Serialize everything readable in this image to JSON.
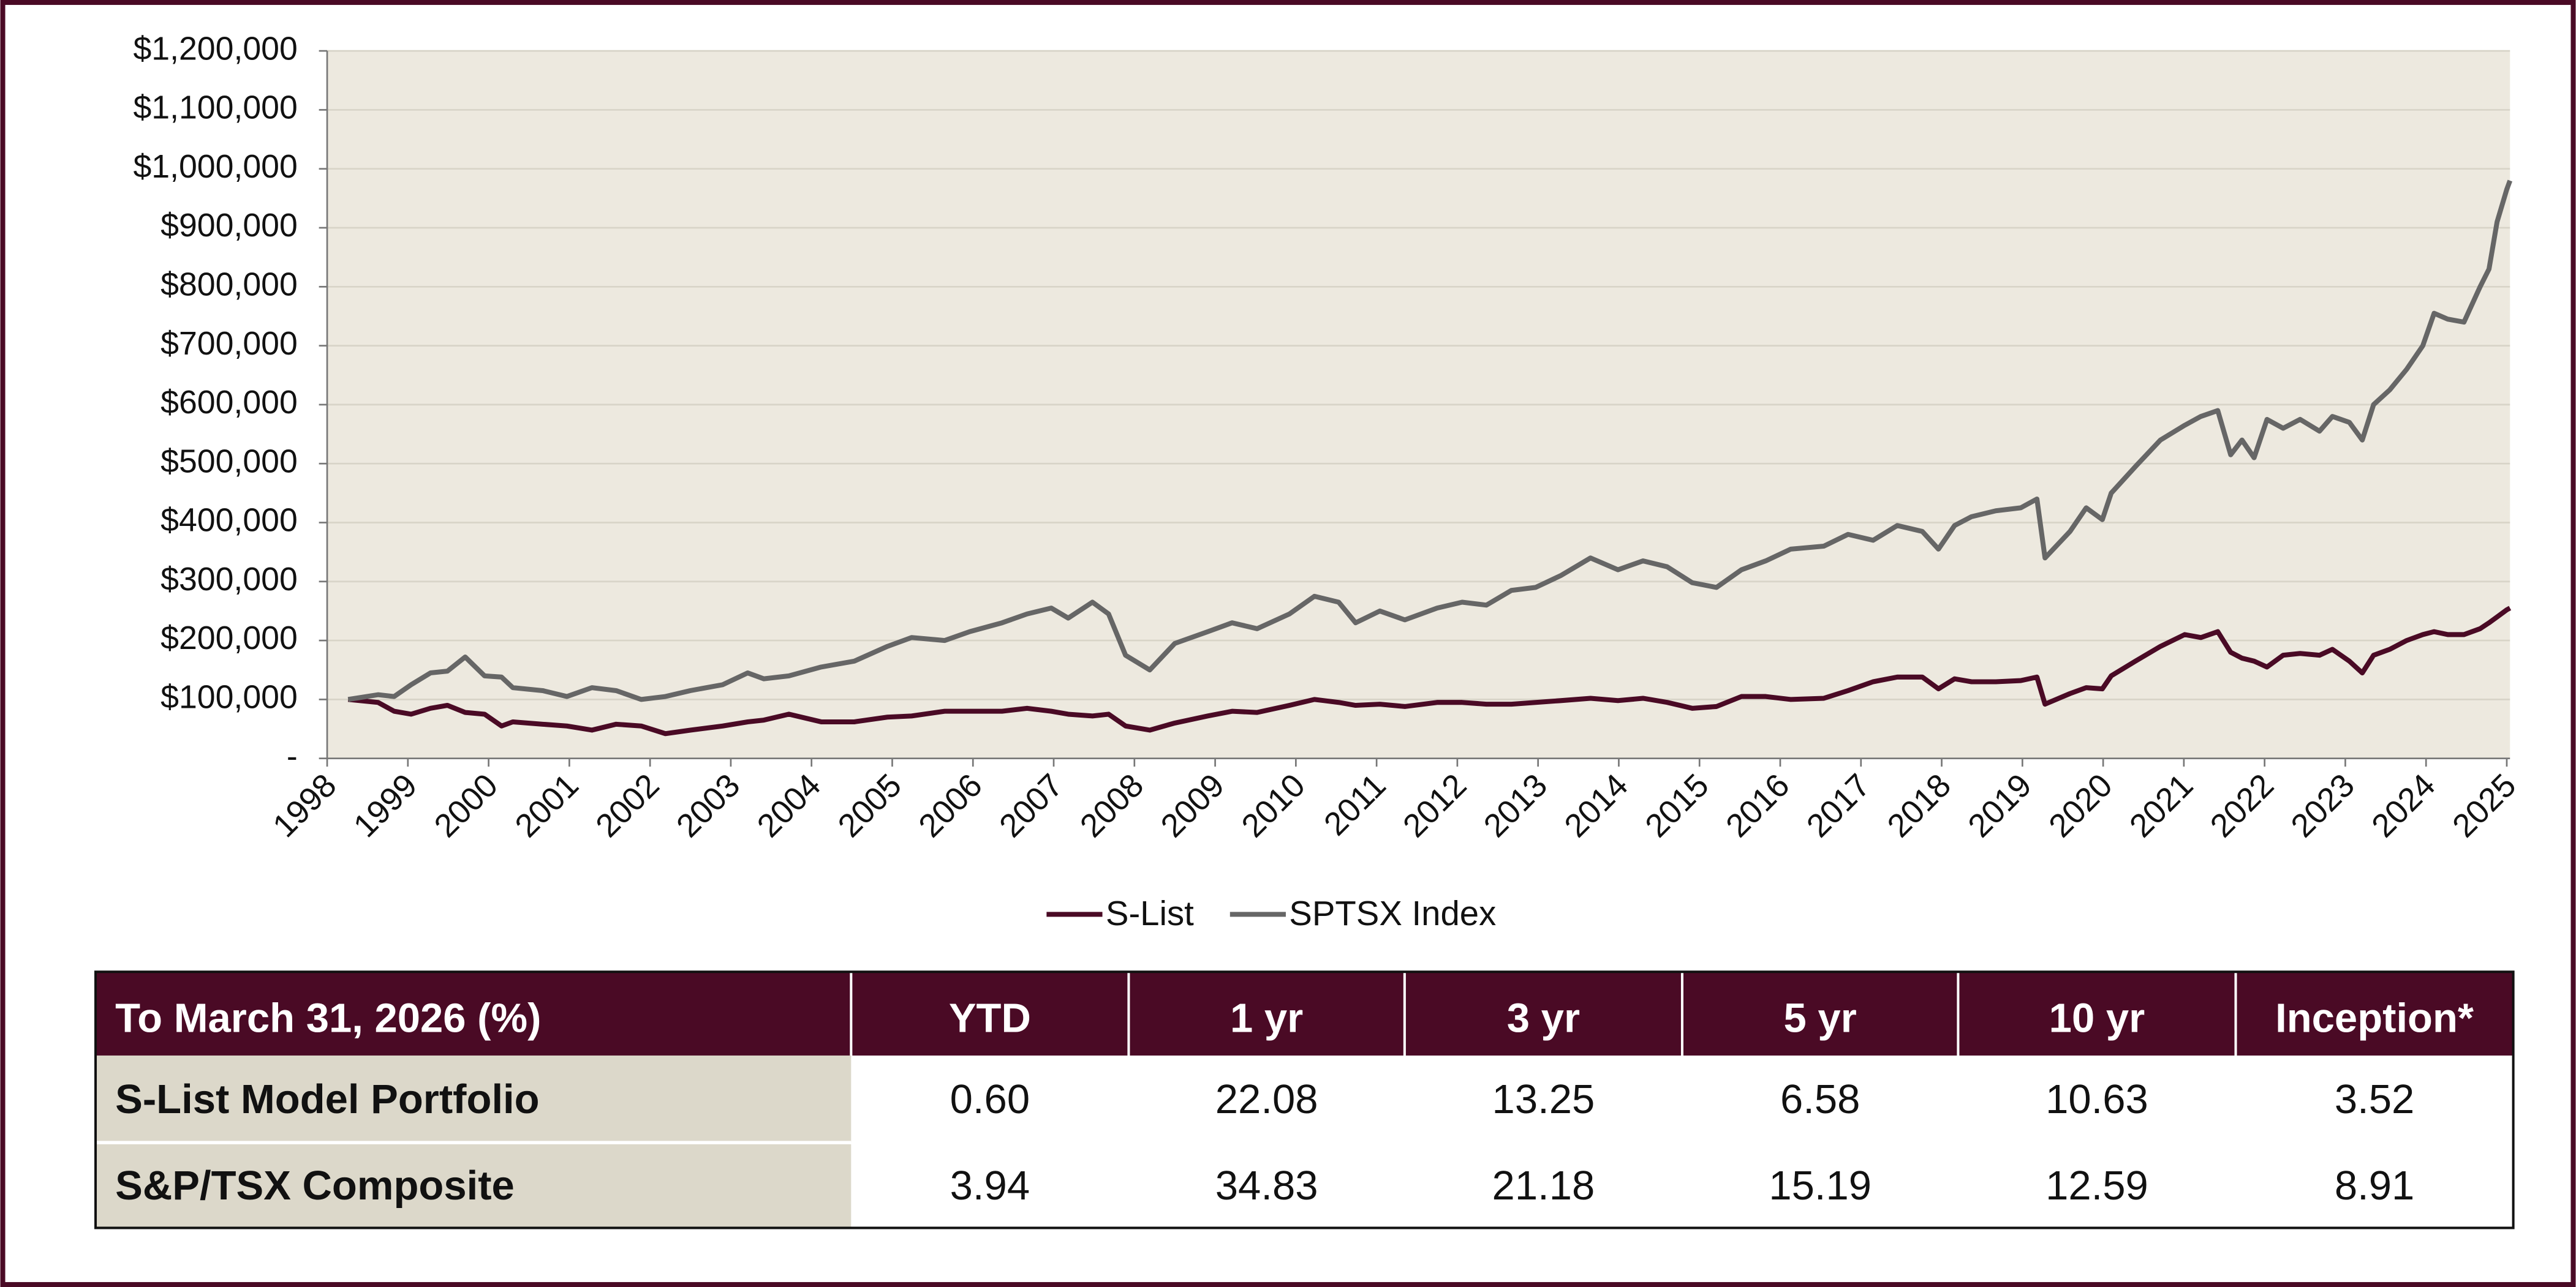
{
  "chart_data": {
    "type": "line",
    "x": [
      1998.26,
      1998.63,
      1998.83,
      1999.04,
      1999.28,
      1999.49,
      1999.71,
      1999.95,
      2000.16,
      2000.3,
      2000.67,
      2000.97,
      2001.28,
      2001.58,
      2001.89,
      2002.19,
      2002.5,
      2002.9,
      2003.21,
      2003.41,
      2003.72,
      2004.12,
      2004.53,
      2004.94,
      2005.24,
      2005.65,
      2005.96,
      2006.36,
      2006.67,
      2006.97,
      2007.18,
      2007.48,
      2007.68,
      2007.89,
      2008.19,
      2008.5,
      2008.91,
      2009.21,
      2009.52,
      2009.92,
      2010.23,
      2010.53,
      2010.74,
      2011.04,
      2011.35,
      2011.75,
      2012.06,
      2012.36,
      2012.67,
      2012.97,
      2013.28,
      2013.65,
      2013.99,
      2014.3,
      2014.6,
      2014.91,
      2015.21,
      2015.52,
      2015.82,
      2016.13,
      2016.54,
      2016.84,
      2017.15,
      2017.45,
      2017.76,
      2017.96,
      2018.16,
      2018.37,
      2018.67,
      2018.98,
      2019.18,
      2019.28,
      2019.59,
      2019.79,
      2019.99,
      2020.1,
      2020.4,
      2020.71,
      2021.01,
      2021.21,
      2021.42,
      2021.58,
      2021.72,
      2021.87,
      2022.03,
      2022.23,
      2022.44,
      2022.68,
      2022.84,
      2023.05,
      2023.21,
      2023.35,
      2023.55,
      2023.76,
      2023.96,
      2024.1,
      2024.27,
      2024.47,
      2024.67,
      2024.78,
      2024.88,
      2025.0,
      2025.04
    ],
    "series": [
      {
        "name": "S-List",
        "color": "#4a0a25",
        "values": [
          100000,
          95000,
          80000,
          75000,
          85000,
          90000,
          78000,
          75000,
          55000,
          62000,
          58000,
          55000,
          48000,
          58000,
          55000,
          42000,
          48000,
          55000,
          62000,
          65000,
          75000,
          62000,
          62000,
          70000,
          72000,
          80000,
          80000,
          80000,
          85000,
          80000,
          75000,
          72000,
          75000,
          55000,
          48000,
          60000,
          72000,
          80000,
          78000,
          90000,
          100000,
          95000,
          90000,
          92000,
          88000,
          95000,
          95000,
          92000,
          92000,
          95000,
          98000,
          102000,
          98000,
          102000,
          95000,
          85000,
          88000,
          105000,
          105000,
          100000,
          102000,
          115000,
          130000,
          138000,
          138000,
          118000,
          135000,
          130000,
          130000,
          132000,
          138000,
          92000,
          110000,
          120000,
          118000,
          140000,
          165000,
          190000,
          210000,
          205000,
          215000,
          180000,
          170000,
          165000,
          155000,
          175000,
          178000,
          175000,
          185000,
          165000,
          145000,
          175000,
          185000,
          200000,
          210000,
          215000,
          210000,
          210000,
          220000,
          230000,
          240000,
          252000,
          255000
        ]
      },
      {
        "name": "SPTSX Index",
        "color": "#666666",
        "values": [
          100000,
          108000,
          105000,
          125000,
          145000,
          148000,
          172000,
          140000,
          138000,
          120000,
          115000,
          105000,
          120000,
          115000,
          100000,
          105000,
          115000,
          125000,
          145000,
          135000,
          140000,
          155000,
          165000,
          190000,
          205000,
          200000,
          215000,
          230000,
          245000,
          255000,
          238000,
          265000,
          245000,
          175000,
          150000,
          195000,
          215000,
          230000,
          220000,
          245000,
          275000,
          265000,
          230000,
          250000,
          235000,
          255000,
          265000,
          260000,
          285000,
          290000,
          310000,
          340000,
          320000,
          335000,
          325000,
          298000,
          290000,
          320000,
          335000,
          355000,
          360000,
          380000,
          370000,
          395000,
          385000,
          355000,
          395000,
          410000,
          420000,
          425000,
          440000,
          340000,
          385000,
          425000,
          405000,
          450000,
          495000,
          540000,
          565000,
          580000,
          590000,
          515000,
          540000,
          510000,
          575000,
          560000,
          575000,
          555000,
          580000,
          570000,
          540000,
          600000,
          625000,
          660000,
          700000,
          755000,
          745000,
          740000,
          800000,
          830000,
          910000,
          965000,
          980000
        ]
      }
    ],
    "xlim": [
      1998,
      2025.04
    ],
    "xticks": [
      1998,
      1999,
      2000,
      2001,
      2002,
      2003,
      2004,
      2005,
      2006,
      2007,
      2008,
      2009,
      2010,
      2011,
      2012,
      2013,
      2014,
      2015,
      2016,
      2017,
      2018,
      2019,
      2020,
      2021,
      2022,
      2023,
      2024,
      2025
    ],
    "ylim": [
      0,
      1200000
    ],
    "yticks": [
      {
        "value": 0,
        "label": "-"
      },
      {
        "value": 100000,
        "label": "$100,000"
      },
      {
        "value": 200000,
        "label": "$200,000"
      },
      {
        "value": 300000,
        "label": "$300,000"
      },
      {
        "value": 400000,
        "label": "$400,000"
      },
      {
        "value": 500000,
        "label": "$500,000"
      },
      {
        "value": 600000,
        "label": "$600,000"
      },
      {
        "value": 700000,
        "label": "$700,000"
      },
      {
        "value": 800000,
        "label": "$800,000"
      },
      {
        "value": 900000,
        "label": "$900,000"
      },
      {
        "value": 1000000,
        "label": "$1,000,000"
      },
      {
        "value": 1100000,
        "label": "$1,100,000"
      },
      {
        "value": 1200000,
        "label": "$1,200,000"
      }
    ],
    "grid": true,
    "legend": "bottom"
  },
  "table": {
    "header": [
      "To March 31, 2026 (%)",
      "YTD",
      "1 yr",
      "3 yr",
      "5 yr",
      "10 yr",
      "Inception*"
    ],
    "rows": [
      [
        "S-List Model Portfolio",
        "0.60",
        "22.08",
        "13.25",
        "6.58",
        "10.63",
        "3.52"
      ],
      [
        "S&P/TSX Composite",
        "3.94",
        "34.83",
        "21.18",
        "15.19",
        "12.59",
        "8.91"
      ]
    ]
  }
}
